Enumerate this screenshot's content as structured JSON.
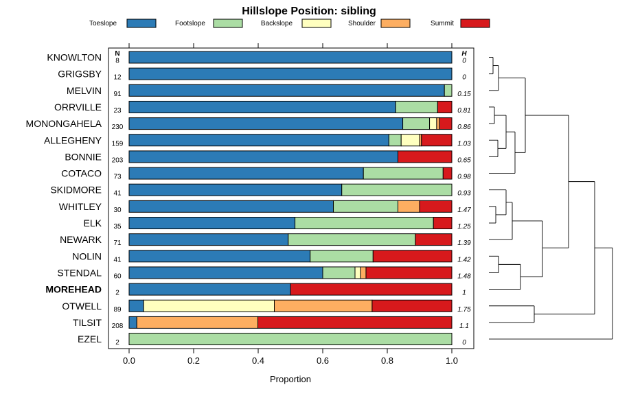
{
  "chart_data": {
    "type": "stacked-bar-horizontal",
    "title": "Hillslope Position: sibling",
    "xlabel": "Proportion",
    "xlim": [
      0,
      1
    ],
    "xticks": [
      "0.0",
      "0.2",
      "0.4",
      "0.6",
      "0.8",
      "1.0"
    ],
    "n_header": "N",
    "h_header": "H",
    "legend": [
      {
        "name": "Toeslope",
        "color": "#2c7bb6"
      },
      {
        "name": "Footslope",
        "color": "#abdda4"
      },
      {
        "name": "Backslope",
        "color": "#ffffbf"
      },
      {
        "name": "Shoulder",
        "color": "#fdae61"
      },
      {
        "name": "Summit",
        "color": "#d7191c"
      }
    ],
    "rows": [
      {
        "label": "KNOWLTON",
        "n": "8",
        "h": "0",
        "bold": false,
        "values": [
          1.0,
          0,
          0,
          0,
          0
        ]
      },
      {
        "label": "GRIGSBY",
        "n": "12",
        "h": "0",
        "bold": false,
        "values": [
          1.0,
          0,
          0,
          0,
          0
        ]
      },
      {
        "label": "MELVIN",
        "n": "91",
        "h": "0.15",
        "bold": false,
        "values": [
          0.977,
          0.023,
          0,
          0,
          0
        ]
      },
      {
        "label": "ORRVILLE",
        "n": "23",
        "h": "0.81",
        "bold": false,
        "values": [
          0.826,
          0.13,
          0,
          0,
          0.044
        ]
      },
      {
        "label": "MONONGAHELA",
        "n": "230",
        "h": "0.86",
        "bold": false,
        "values": [
          0.848,
          0.083,
          0.022,
          0.009,
          0.038
        ]
      },
      {
        "label": "ALLEGHENY",
        "n": "159",
        "h": "1.03",
        "bold": false,
        "values": [
          0.805,
          0.038,
          0.057,
          0.006,
          0.094
        ]
      },
      {
        "label": "BONNIE",
        "n": "203",
        "h": "0.65",
        "bold": false,
        "values": [
          0.833,
          0,
          0,
          0,
          0.167
        ]
      },
      {
        "label": "COTACO",
        "n": "73",
        "h": "0.98",
        "bold": false,
        "values": [
          0.726,
          0.247,
          0,
          0,
          0.027
        ]
      },
      {
        "label": "SKIDMORE",
        "n": "41",
        "h": "0.93",
        "bold": false,
        "values": [
          0.659,
          0.341,
          0,
          0,
          0
        ]
      },
      {
        "label": "WHITLEY",
        "n": "30",
        "h": "1.47",
        "bold": false,
        "values": [
          0.633,
          0.2,
          0,
          0.067,
          0.1
        ]
      },
      {
        "label": "ELK",
        "n": "35",
        "h": "1.25",
        "bold": false,
        "values": [
          0.514,
          0.429,
          0,
          0,
          0.057
        ]
      },
      {
        "label": "NEWARK",
        "n": "71",
        "h": "1.39",
        "bold": false,
        "values": [
          0.493,
          0.394,
          0,
          0,
          0.113
        ]
      },
      {
        "label": "NOLIN",
        "n": "41",
        "h": "1.42",
        "bold": false,
        "values": [
          0.561,
          0.195,
          0,
          0,
          0.244
        ]
      },
      {
        "label": "STENDAL",
        "n": "60",
        "h": "1.48",
        "bold": false,
        "values": [
          0.6,
          0.1,
          0.017,
          0.017,
          0.266
        ]
      },
      {
        "label": "MOREHEAD",
        "n": "2",
        "h": "1",
        "bold": true,
        "values": [
          0.5,
          0,
          0,
          0,
          0.5
        ]
      },
      {
        "label": "OTWELL",
        "n": "89",
        "h": "1.75",
        "bold": false,
        "values": [
          0.045,
          0,
          0.405,
          0.303,
          0.247
        ]
      },
      {
        "label": "TILSIT",
        "n": "208",
        "h": "1.1",
        "bold": false,
        "values": [
          0.024,
          0,
          0,
          0.375,
          0.601
        ]
      },
      {
        "label": "EZEL",
        "n": "2",
        "h": "0",
        "bold": false,
        "values": [
          0,
          1.0,
          0,
          0,
          0
        ]
      }
    ]
  }
}
